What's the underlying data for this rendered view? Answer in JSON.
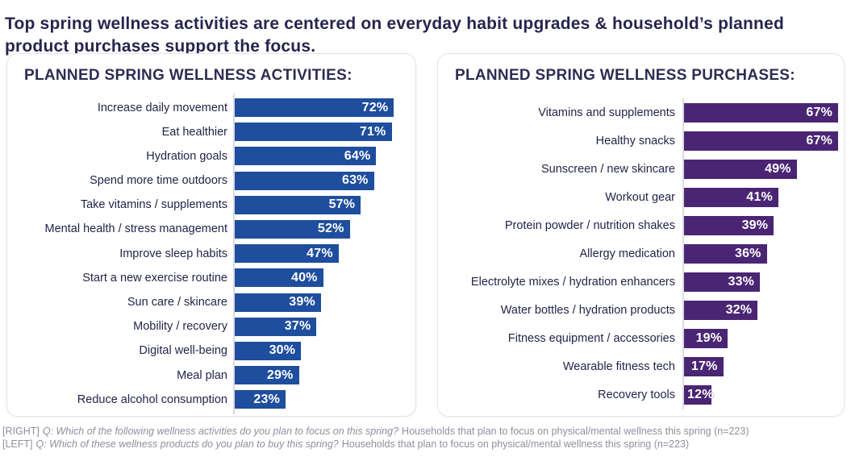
{
  "title": "Top spring wellness activities are centered on everyday habit upgrades & household’s planned product purchases support the focus.",
  "colors": {
    "title_text": "#26254e",
    "heading_text": "#2d2c52",
    "category_text": "#1f2347",
    "activities_bar_blue": "#1e4e9d",
    "purchases_bar_purple": "#4a2574",
    "value_text": "#ffffff",
    "axis_line": "#dadae3",
    "footer_text": "#8f8f9e",
    "panel_border": "#e4e4ea"
  },
  "chart_data": [
    {
      "type": "bar",
      "orientation": "horizontal",
      "title": "PLANNED SPRING WELLNESS ACTIVITIES:",
      "bar_color": "#1e4e9d",
      "value_suffix": "%",
      "xlim": [
        0,
        100
      ],
      "grid": false,
      "legend": false,
      "value_label_position": "inside-end",
      "categories": [
        "Increase daily movement",
        "Eat healthier",
        "Hydration goals",
        "Spend more time outdoors",
        "Take vitamins / supplements",
        "Mental health / stress management",
        "Improve sleep habits",
        "Start a new exercise routine",
        "Sun care / skincare",
        "Mobility / recovery",
        "Digital well-being",
        "Meal plan",
        "Reduce alcohol consumption"
      ],
      "values": [
        72,
        71,
        64,
        63,
        57,
        52,
        47,
        40,
        39,
        37,
        30,
        29,
        23
      ]
    },
    {
      "type": "bar",
      "orientation": "horizontal",
      "title": "PLANNED SPRING WELLNESS PURCHASES:",
      "bar_color": "#4a2574",
      "value_suffix": "%",
      "xlim": [
        0,
        100
      ],
      "grid": false,
      "legend": false,
      "value_label_position": "inside-end",
      "categories": [
        "Vitamins and supplements",
        "Healthy snacks",
        "Sunscreen / new skincare",
        "Workout gear",
        "Protein powder / nutrition shakes",
        "Allergy medication",
        "Electrolyte mixes / hydration enhancers",
        "Water bottles / hydration products",
        "Fitness equipment / accessories",
        "Wearable fitness tech",
        "Recovery tools"
      ],
      "values": [
        67,
        67,
        49,
        41,
        39,
        36,
        33,
        32,
        19,
        17,
        12
      ]
    }
  ],
  "footnotes": [
    {
      "prefix": "[RIGHT]",
      "question": "Q: Which of the following wellness activities do you plan to focus on this spring?",
      "rest": "Households that plan to focus on physical/mental wellness this spring (n=223)"
    },
    {
      "prefix": "[LEFT]",
      "question": "Q: Which of these wellness products do you plan to buy this spring?",
      "rest": "Households that plan to focus on physical/mental wellness this spring (n=223)"
    }
  ]
}
